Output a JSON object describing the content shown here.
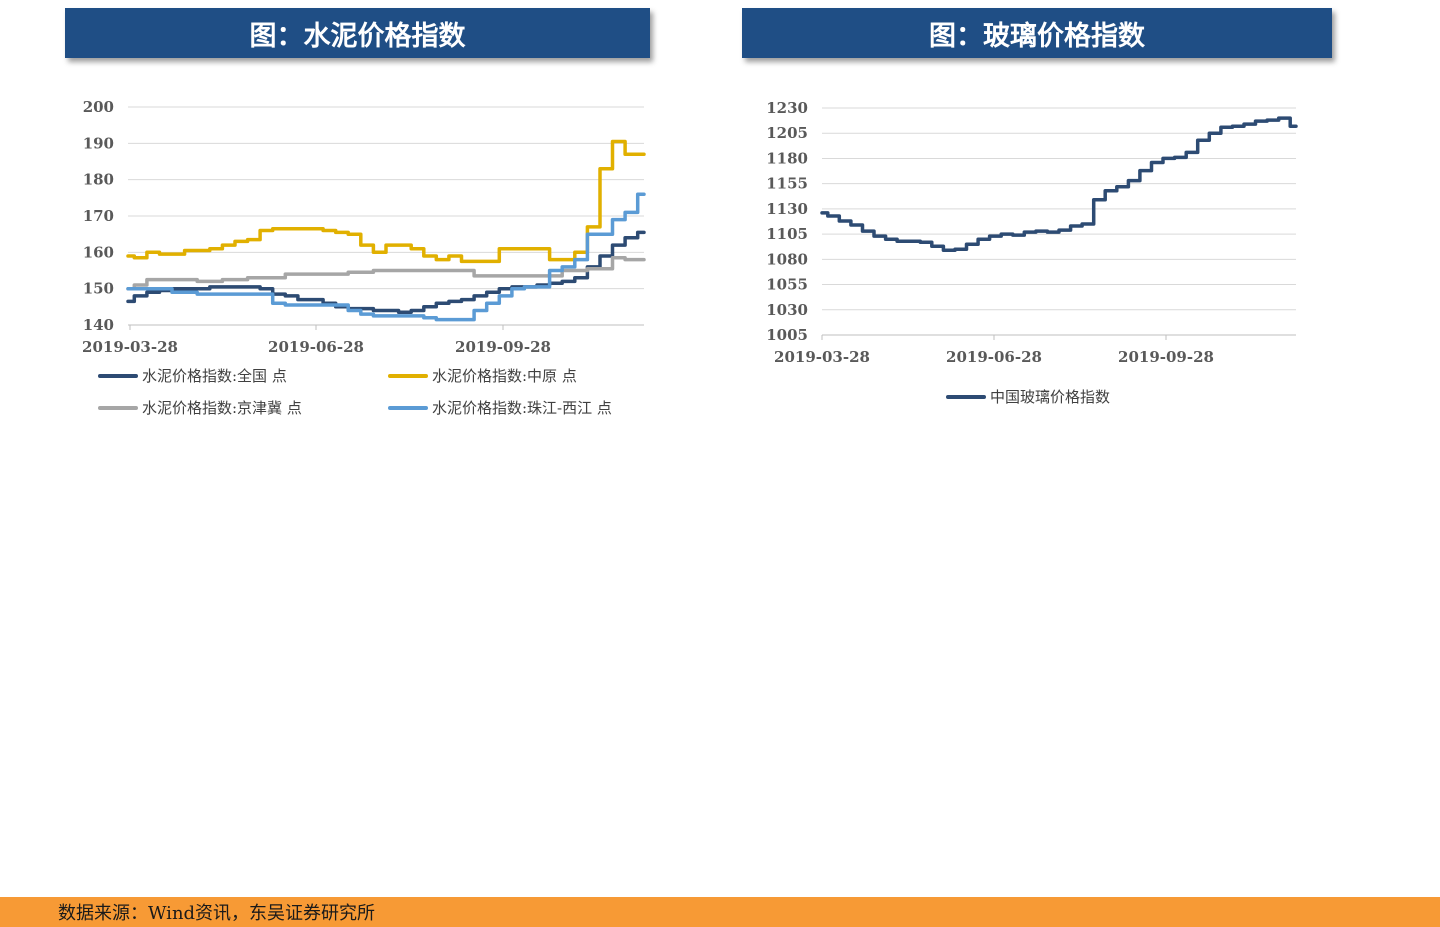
{
  "panels": {
    "left_title": "图：水泥价格指数",
    "right_title": "图：玻璃价格指数"
  },
  "footer": {
    "source": "数据来源：Wind资讯，东吴证券研究所"
  },
  "chart_data": [
    {
      "type": "line",
      "title": "图：水泥价格指数",
      "x_ticks": [
        "2019-03-28",
        "2019-06-28",
        "2019-09-28"
      ],
      "ylim": [
        140,
        200
      ],
      "y_ticks": [
        140,
        150,
        160,
        170,
        180,
        190,
        200
      ],
      "grid": true,
      "legend_position": "bottom",
      "series": [
        {
          "name": "水泥价格指数:全国  点",
          "color": "#2d4b73",
          "values": [
            146.5,
            148,
            149,
            149.5,
            150,
            150,
            150,
            150.5,
            150.5,
            150.5,
            150.5,
            150,
            148.5,
            148,
            147,
            147,
            146,
            145,
            144.5,
            144.5,
            144,
            144,
            143.5,
            144,
            145,
            146,
            146.5,
            147,
            148,
            149,
            150,
            150.5,
            150.5,
            151,
            151.5,
            152,
            153,
            156,
            159,
            162,
            164,
            165.5
          ]
        },
        {
          "name": "水泥价格指数:中原  点",
          "color": "#e1b000",
          "values": [
            159,
            158.5,
            160,
            159.5,
            159.5,
            160.5,
            160.5,
            161,
            162,
            163,
            163.5,
            166,
            166.5,
            166.5,
            166.5,
            166.5,
            166,
            165.5,
            165,
            162,
            160,
            162,
            162,
            161,
            159,
            158,
            159,
            157.5,
            157.5,
            157.5,
            161,
            161,
            161,
            161,
            158,
            158,
            160,
            167,
            183,
            190.5,
            187,
            187
          ]
        },
        {
          "name": "水泥价格指数:京津冀  点",
          "color": "#a6a6a6",
          "values": [
            150,
            151,
            152.5,
            152.5,
            152.5,
            152.5,
            152,
            152,
            152.5,
            152.5,
            153,
            153,
            153,
            154,
            154,
            154,
            154,
            154,
            154.5,
            154.5,
            155,
            155,
            155,
            155,
            155,
            155,
            155,
            155,
            153.5,
            153.5,
            153.5,
            153.5,
            153.5,
            153.5,
            153.5,
            155,
            155,
            155.5,
            155.5,
            158.5,
            158,
            158
          ]
        },
        {
          "name": "水泥价格指数:珠江-西江  点",
          "color": "#5b9bd5",
          "values": [
            150,
            150,
            150,
            150,
            149,
            149,
            148.5,
            148.5,
            148.5,
            148.5,
            148.5,
            148.5,
            146,
            145.5,
            145.5,
            145.5,
            145.5,
            145.5,
            144,
            143,
            142.5,
            142.5,
            142.5,
            142.5,
            142,
            141.5,
            141.5,
            141.5,
            144,
            146,
            148,
            150,
            150.5,
            150.5,
            155,
            156,
            158,
            165,
            165,
            169,
            171,
            176
          ]
        }
      ]
    },
    {
      "type": "line",
      "title": "图：玻璃价格指数",
      "x_ticks": [
        "2019-03-28",
        "2019-06-28",
        "2019-09-28"
      ],
      "ylim": [
        1005,
        1230
      ],
      "y_ticks": [
        1005,
        1030,
        1055,
        1080,
        1105,
        1130,
        1155,
        1180,
        1205,
        1230
      ],
      "grid": true,
      "legend_position": "bottom",
      "series": [
        {
          "name": "中国玻璃价格指数",
          "color": "#2d4b73",
          "values": [
            1126,
            1123,
            1118,
            1114,
            1108,
            1103,
            1100,
            1098,
            1098,
            1097,
            1093,
            1089,
            1090,
            1095,
            1100,
            1103,
            1105,
            1104,
            1107,
            1108,
            1107,
            1109,
            1113,
            1115,
            1139,
            1148,
            1152,
            1158,
            1168,
            1176,
            1180,
            1181,
            1186,
            1198,
            1205,
            1211,
            1212,
            1214,
            1217,
            1218,
            1220,
            1212
          ]
        }
      ]
    }
  ]
}
